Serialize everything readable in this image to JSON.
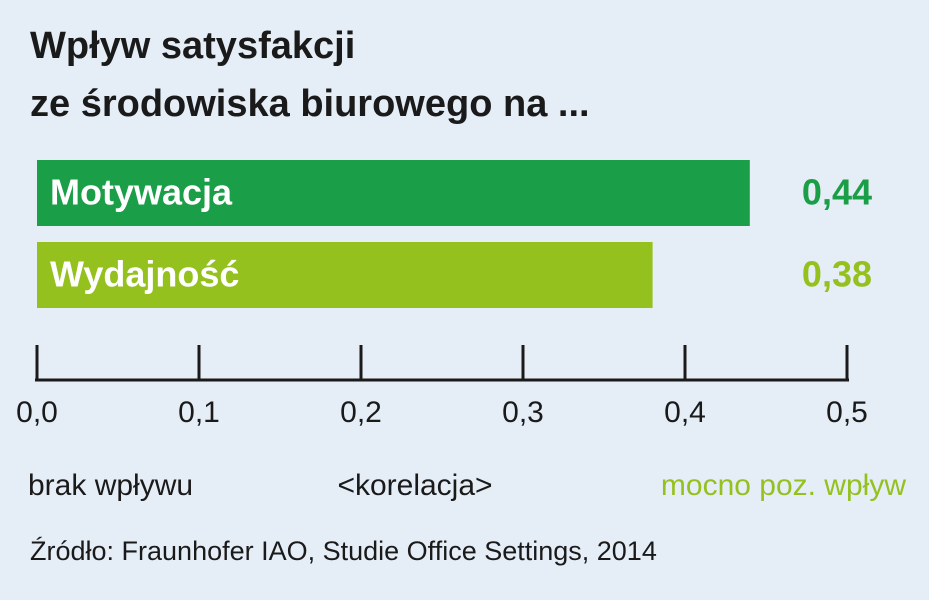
{
  "chart_data": {
    "type": "bar",
    "orientation": "horizontal",
    "title": [
      "Wpływ satysfakcji",
      "ze środowiska biurowego na ..."
    ],
    "categories": [
      "Motywacja",
      "Wydajność"
    ],
    "values": [
      0.44,
      0.38
    ],
    "value_labels": [
      "0,44",
      "0,38"
    ],
    "colors": [
      "#1a9e47",
      "#95c11f"
    ],
    "xlim": [
      0,
      0.5
    ],
    "xticks": [
      {
        "value": 0,
        "label": "0,0"
      },
      {
        "value": 0.1,
        "label": "0,1"
      },
      {
        "value": 0.2,
        "label": "0,2"
      },
      {
        "value": 0.3,
        "label": "0,3"
      },
      {
        "value": 0.4,
        "label": "0,4"
      },
      {
        "value": 0.5,
        "label": "0,5"
      }
    ],
    "scale_labels": [
      {
        "text": "brak wpływu",
        "color": "#1a1a1a"
      },
      {
        "text": "<korelacja>",
        "color": "#1a1a1a"
      },
      {
        "text": "mocno poz. wpływ",
        "color": "#95c11f"
      }
    ],
    "source": "Źródło: Fraunhofer IAO, Studie Office Settings, 2014"
  }
}
